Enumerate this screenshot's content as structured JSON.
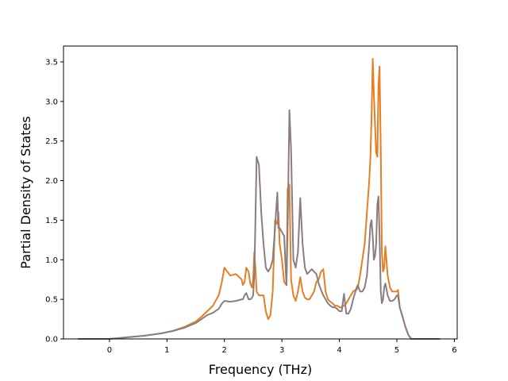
{
  "chart_data": {
    "type": "line",
    "title": "",
    "xlabel": "Frequency (THz)",
    "ylabel": "Partial Density of States",
    "xlim": [
      -0.8,
      6.05
    ],
    "ylim": [
      0,
      3.7
    ],
    "xticks": [
      0,
      1,
      2,
      3,
      4,
      5,
      6
    ],
    "yticks": [
      0.0,
      0.5,
      1.0,
      1.5,
      2.0,
      2.5,
      3.0,
      3.5
    ],
    "xtick_labels": [
      "0",
      "1",
      "2",
      "3",
      "4",
      "5",
      "6"
    ],
    "ytick_labels": [
      "0.0",
      "0.5",
      "1.0",
      "1.5",
      "2.0",
      "2.5",
      "3.0",
      "3.5"
    ],
    "grid": false,
    "legend": "none",
    "series": [
      {
        "color": "#e67e22",
        "x": [
          -0.55,
          0.0,
          0.3,
          0.6,
          0.9,
          1.1,
          1.3,
          1.5,
          1.6,
          1.7,
          1.8,
          1.9,
          1.95,
          2.0,
          2.1,
          2.2,
          2.3,
          2.32,
          2.35,
          2.38,
          2.42,
          2.45,
          2.48,
          2.5,
          2.52,
          2.54,
          2.56,
          2.6,
          2.64,
          2.68,
          2.72,
          2.76,
          2.8,
          2.84,
          2.88,
          2.92,
          2.94,
          2.96,
          3.0,
          3.04,
          3.08,
          3.1,
          3.13,
          3.16,
          3.2,
          3.24,
          3.28,
          3.32,
          3.36,
          3.4,
          3.44,
          3.48,
          3.52,
          3.56,
          3.6,
          3.64,
          3.68,
          3.72,
          3.76,
          3.8,
          3.84,
          3.88,
          3.92,
          3.96,
          4.0,
          4.04,
          4.08,
          4.12,
          4.16,
          4.2,
          4.24,
          4.28,
          4.3,
          4.32,
          4.36,
          4.4,
          4.44,
          4.48,
          4.52,
          4.54,
          4.56,
          4.58,
          4.6,
          4.62,
          4.64,
          4.66,
          4.68,
          4.7,
          4.72,
          4.74,
          4.76,
          4.78,
          4.8,
          4.84,
          4.88,
          4.92,
          4.96,
          5.0,
          5.02,
          5.05,
          5.1,
          5.15,
          5.2,
          5.25,
          5.75
        ],
        "y": [
          0.0,
          0.0,
          0.02,
          0.04,
          0.07,
          0.1,
          0.15,
          0.22,
          0.28,
          0.35,
          0.42,
          0.55,
          0.7,
          0.9,
          0.8,
          0.82,
          0.75,
          0.68,
          0.72,
          0.9,
          0.85,
          0.7,
          0.65,
          0.75,
          1.1,
          0.9,
          0.6,
          0.55,
          0.55,
          0.55,
          0.35,
          0.25,
          0.3,
          0.6,
          1.5,
          1.45,
          1.6,
          1.2,
          1.0,
          0.72,
          0.68,
          1.9,
          1.95,
          0.75,
          0.55,
          0.48,
          0.6,
          0.78,
          0.6,
          0.52,
          0.5,
          0.5,
          0.55,
          0.6,
          0.72,
          0.75,
          0.85,
          0.88,
          0.6,
          0.5,
          0.47,
          0.45,
          0.42,
          0.42,
          0.4,
          0.4,
          0.42,
          0.45,
          0.5,
          0.55,
          0.6,
          0.62,
          0.62,
          0.65,
          0.8,
          1.0,
          1.2,
          1.6,
          2.0,
          2.3,
          2.8,
          3.54,
          3.1,
          2.7,
          2.35,
          2.3,
          3.2,
          3.44,
          2.4,
          1.1,
          0.85,
          0.9,
          1.17,
          0.8,
          0.65,
          0.6,
          0.6,
          0.6,
          0.62,
          0.4,
          0.28,
          0.15,
          0.05,
          0.0,
          0.0
        ]
      },
      {
        "color": "#8a7d80",
        "x": [
          -0.55,
          0.0,
          0.3,
          0.6,
          0.9,
          1.1,
          1.3,
          1.5,
          1.6,
          1.7,
          1.8,
          1.9,
          1.95,
          2.0,
          2.1,
          2.2,
          2.3,
          2.32,
          2.35,
          2.38,
          2.42,
          2.45,
          2.48,
          2.5,
          2.52,
          2.54,
          2.56,
          2.6,
          2.64,
          2.68,
          2.72,
          2.76,
          2.8,
          2.84,
          2.88,
          2.92,
          2.94,
          2.96,
          3.0,
          3.04,
          3.08,
          3.1,
          3.13,
          3.16,
          3.2,
          3.24,
          3.28,
          3.32,
          3.36,
          3.4,
          3.44,
          3.48,
          3.52,
          3.56,
          3.6,
          3.64,
          3.68,
          3.72,
          3.76,
          3.8,
          3.84,
          3.88,
          3.92,
          3.96,
          4.0,
          4.04,
          4.08,
          4.12,
          4.16,
          4.2,
          4.24,
          4.28,
          4.3,
          4.32,
          4.36,
          4.4,
          4.44,
          4.48,
          4.52,
          4.54,
          4.56,
          4.58,
          4.6,
          4.62,
          4.64,
          4.66,
          4.68,
          4.7,
          4.72,
          4.74,
          4.76,
          4.78,
          4.8,
          4.84,
          4.88,
          4.92,
          4.96,
          5.0,
          5.02,
          5.05,
          5.1,
          5.15,
          5.2,
          5.25,
          5.75
        ],
        "y": [
          0.0,
          0.0,
          0.02,
          0.04,
          0.07,
          0.1,
          0.14,
          0.2,
          0.25,
          0.3,
          0.33,
          0.38,
          0.44,
          0.48,
          0.47,
          0.48,
          0.5,
          0.5,
          0.55,
          0.58,
          0.5,
          0.5,
          0.52,
          0.55,
          0.8,
          1.5,
          2.3,
          2.2,
          1.6,
          1.2,
          0.9,
          0.85,
          0.9,
          1.0,
          1.4,
          1.85,
          1.4,
          1.4,
          1.35,
          1.3,
          0.68,
          1.4,
          2.89,
          2.4,
          1.0,
          0.9,
          1.1,
          1.78,
          1.2,
          0.9,
          0.82,
          0.85,
          0.88,
          0.85,
          0.82,
          0.7,
          0.62,
          0.55,
          0.5,
          0.45,
          0.42,
          0.4,
          0.4,
          0.38,
          0.35,
          0.35,
          0.57,
          0.32,
          0.32,
          0.38,
          0.5,
          0.6,
          0.65,
          0.68,
          0.6,
          0.6,
          0.65,
          0.8,
          1.2,
          1.45,
          1.5,
          1.3,
          1.0,
          1.05,
          1.2,
          1.7,
          1.8,
          1.3,
          0.6,
          0.45,
          0.5,
          0.65,
          0.7,
          0.55,
          0.48,
          0.48,
          0.5,
          0.55,
          0.55,
          0.4,
          0.28,
          0.15,
          0.05,
          0.0,
          0.0
        ]
      }
    ]
  }
}
